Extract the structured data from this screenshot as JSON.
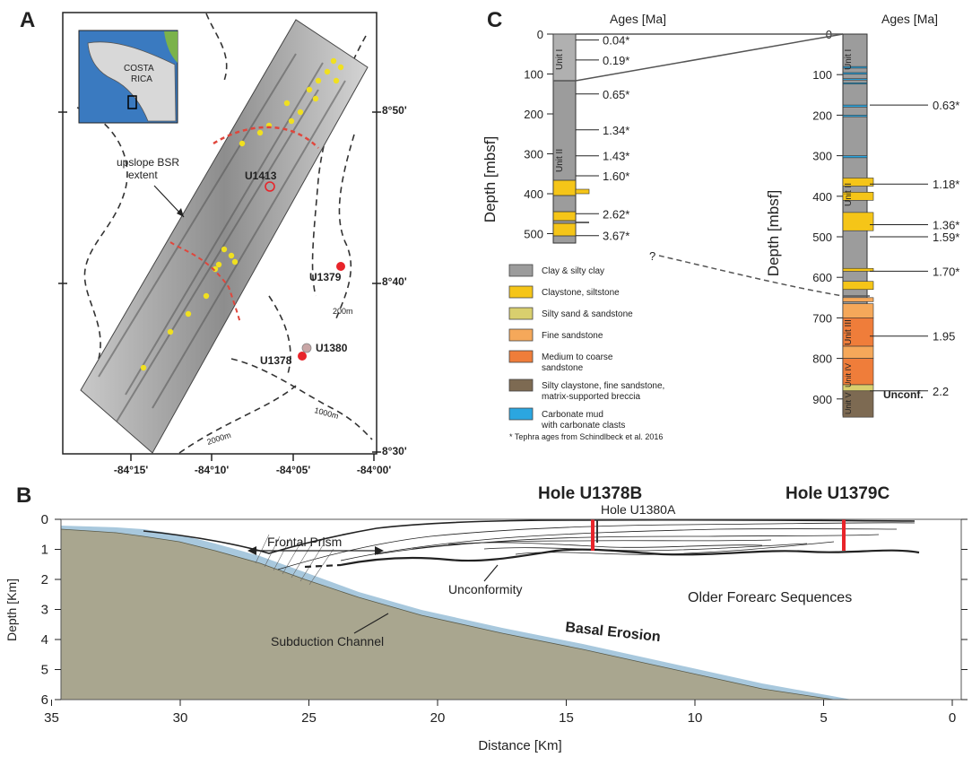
{
  "panels": {
    "a": {
      "letter": "A",
      "inset": {
        "country": [
          "COSTA",
          "RICA"
        ]
      },
      "lat_ticks": [
        "8°50'",
        "8°40'",
        "8°30'"
      ],
      "lon_ticks": [
        "-84°15'",
        "-84°10'",
        "-84°05'",
        "-84°00'"
      ],
      "sites": [
        "U1413",
        "U1379",
        "U1378",
        "U1380"
      ],
      "annotation": [
        "upslope BSR",
        "extent"
      ],
      "contours": [
        "200m",
        "1000m",
        "2000m"
      ],
      "colors": {
        "site_active": "#e8242a",
        "site_inactive": "#c9a6a6",
        "seep": "#f0e020",
        "bsr": "#e0463c"
      }
    },
    "b": {
      "letter": "B",
      "holes": {
        "u1378b": "Hole U1378B",
        "u1380a": "Hole U1380A",
        "u1379c": "Hole U1379C"
      },
      "labels": {
        "frontal_prism": "Frontal Prism",
        "unconformity": "Unconformity",
        "older_forearc": "Older Forearc Sequences",
        "basal_erosion": "Basal Erosion",
        "subduction_channel": "Subduction Channel"
      },
      "x_label": "Distance [Km]",
      "y_label": "Depth [Km]",
      "x_ticks": [
        "35",
        "30",
        "25",
        "20",
        "15",
        "10",
        "5",
        "0"
      ],
      "y_ticks": [
        "0",
        "1",
        "2",
        "3",
        "4",
        "5",
        "6"
      ],
      "colors": {
        "plate": "#a9a68f",
        "channel": "#a8c8dd",
        "hole": "#e8242a"
      }
    },
    "c": {
      "letter": "C",
      "ages_header": "Ages [Ma]",
      "depth_label": "Depth [mbsf]",
      "left_column": {
        "depth_ticks": [
          "0",
          "100",
          "200",
          "300",
          "400",
          "500"
        ],
        "units": [
          "Unit I",
          "Unit II"
        ],
        "ages": [
          "0.04*",
          "0.19*",
          "0.65*",
          "1.34*",
          "1.43*",
          "1.60*",
          "2.62*",
          "3.67*"
        ]
      },
      "right_column": {
        "depth_ticks": [
          "0",
          "100",
          "200",
          "300",
          "400",
          "500",
          "600",
          "700",
          "800",
          "900"
        ],
        "units": [
          "Unit I",
          "Unit II",
          "Unit III",
          "Unit IV",
          "Unit V"
        ],
        "ages": [
          "0.63*",
          "1.18*",
          "1.36*",
          "1.59*",
          "1.70*",
          "1.95",
          "2.2"
        ],
        "unconf": "Unconf."
      },
      "question": "?",
      "legend": [
        {
          "label": "Clay & silty clay",
          "color": "#9c9c9c"
        },
        {
          "label": "Claystone, siltstone",
          "color": "#f5c518"
        },
        {
          "label": "Silty sand & sandstone",
          "color": "#d9cf6e"
        },
        {
          "label": "Fine sandstone",
          "color": "#f5a85a"
        },
        {
          "label": "Medium to coarse|sandstone",
          "color": "#ef7d3a"
        },
        {
          "label": "Silty claystone, fine sandstone,|matrix-supported breccia",
          "color": "#7d6a52"
        },
        {
          "label": "Carbonate mud|with carbonate clasts",
          "color": "#2ba6e0"
        }
      ],
      "footnote": "* Tephra ages from Schindlbeck et al. 2016"
    }
  }
}
